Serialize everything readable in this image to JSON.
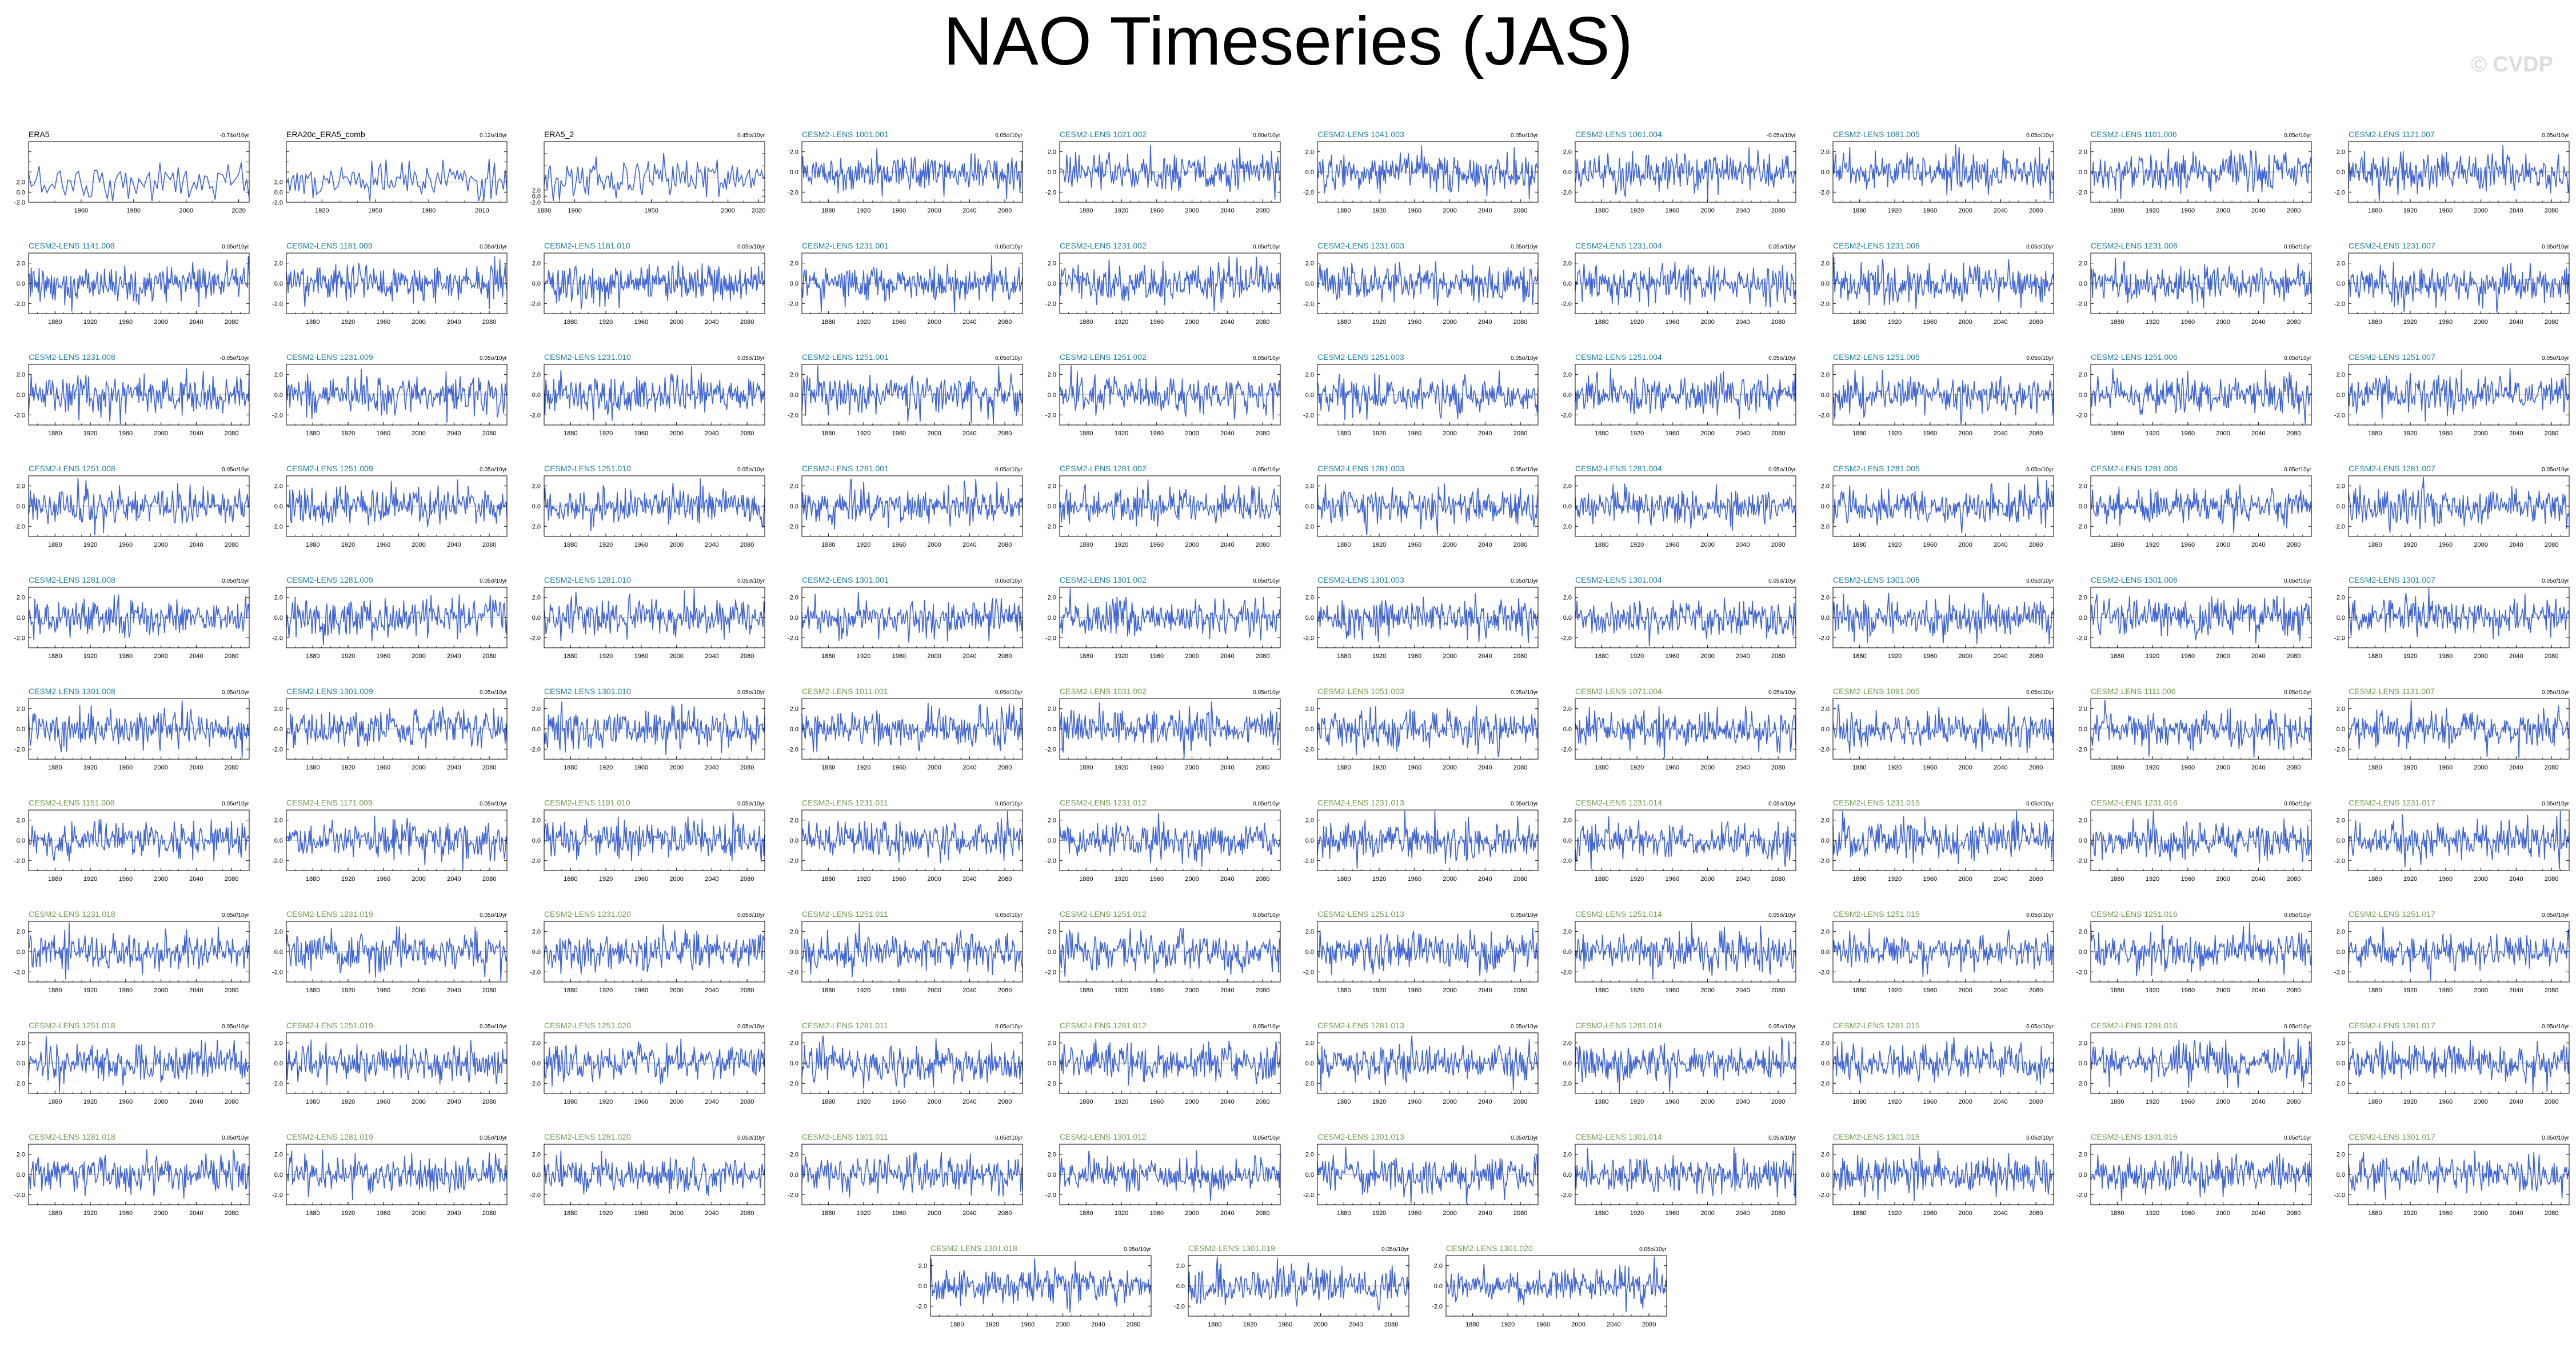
{
  "title": "NAO Timeseries (JAS)",
  "watermark": "© CVDP",
  "colors": {
    "line": "#3e63d6",
    "obs_label": "#000000",
    "model_label_a": "#1b7fa0",
    "model_label_b": "#6e9e4f",
    "axis": "#000000"
  },
  "chart_data": [
    {
      "title": "ERA5",
      "trend": "-0.74σ/10yr",
      "label_color": "obs",
      "xlim": [
        1940,
        2024
      ],
      "xticks": [
        1960,
        1980,
        2000,
        2020
      ],
      "ylim": [
        -2,
        4
      ],
      "yticks": [
        -2,
        -1,
        0,
        1,
        2,
        3,
        4
      ],
      "type": "line"
    },
    {
      "title": "ERA20c_ERA5_comb",
      "trend": "0.12σ/10yr",
      "label_color": "obs",
      "xlim": [
        1900,
        2024
      ],
      "xticks": [
        1920,
        1950,
        1980,
        2010
      ],
      "ylim": [
        -2,
        4
      ],
      "yticks": [
        -2,
        -1,
        0,
        1,
        2,
        3,
        4
      ],
      "type": "line"
    },
    {
      "title": "ERA5_2",
      "trend": "0.45σ/10yr",
      "label_color": "obs",
      "xlim": [
        1880,
        2024
      ],
      "xticks": [
        1880,
        1900,
        1950,
        2000,
        2020
      ],
      "ylim": [
        -2,
        3
      ],
      "yticks": [
        -2,
        -1.5,
        -1,
        0,
        1,
        2,
        3
      ],
      "type": "line"
    },
    {
      "title": "CESM2-LENS 1001.001",
      "trend": "0.05σ/10yr",
      "label_color": "a"
    },
    {
      "title": "CESM2-LENS 1021.002",
      "trend": "0.00σ/10yr",
      "label_color": "a"
    },
    {
      "title": "CESM2-LENS 1041.003",
      "trend": "0.05σ/10yr",
      "label_color": "a"
    },
    {
      "title": "CESM2-LENS 1061.004",
      "trend": "-0.05σ/10yr",
      "label_color": "a"
    },
    {
      "title": "CESM2-LENS 1081.005",
      "trend": "0.05σ/10yr",
      "label_color": "a"
    },
    {
      "title": "CESM2-LENS 1101.006",
      "trend": "0.05σ/10yr",
      "label_color": "a"
    },
    {
      "title": "CESM2-LENS 1121.007",
      "trend": "0.05σ/10yr",
      "label_color": "a"
    },
    {
      "title": "CESM2-LENS 1141.008",
      "trend": "0.05σ/10yr",
      "label_color": "a"
    },
    {
      "title": "CESM2-LENS 1161.009",
      "trend": "0.05σ/10yr",
      "label_color": "a"
    },
    {
      "title": "CESM2-LENS 1181.010",
      "trend": "0.05σ/10yr",
      "label_color": "a"
    },
    {
      "title": "CESM2-LENS 1231.001",
      "trend": "0.05σ/10yr",
      "label_color": "a"
    },
    {
      "title": "CESM2-LENS 1231.002",
      "trend": "0.05σ/10yr",
      "label_color": "a"
    },
    {
      "title": "CESM2-LENS 1231.003",
      "trend": "0.05σ/10yr",
      "label_color": "a"
    },
    {
      "title": "CESM2-LENS 1231.004",
      "trend": "0.05σ/10yr",
      "label_color": "a"
    },
    {
      "title": "CESM2-LENS 1231.005",
      "trend": "0.05σ/10yr",
      "label_color": "a"
    },
    {
      "title": "CESM2-LENS 1231.006",
      "trend": "0.05σ/10yr",
      "label_color": "a"
    },
    {
      "title": "CESM2-LENS 1231.007",
      "trend": "0.05σ/10yr",
      "label_color": "a"
    },
    {
      "title": "CESM2-LENS 1231.008",
      "trend": "-0.05σ/10yr",
      "label_color": "a"
    },
    {
      "title": "CESM2-LENS 1231.009",
      "trend": "0.05σ/10yr",
      "label_color": "a"
    },
    {
      "title": "CESM2-LENS 1231.010",
      "trend": "0.05σ/10yr",
      "label_color": "a"
    },
    {
      "title": "CESM2-LENS 1251.001",
      "trend": "0.05σ/10yr",
      "label_color": "a"
    },
    {
      "title": "CESM2-LENS 1251.002",
      "trend": "0.05σ/10yr",
      "label_color": "a"
    },
    {
      "title": "CESM2-LENS 1251.003",
      "trend": "0.05σ/10yr",
      "label_color": "a"
    },
    {
      "title": "CESM2-LENS 1251.004",
      "trend": "0.05σ/10yr",
      "label_color": "a"
    },
    {
      "title": "CESM2-LENS 1251.005",
      "trend": "0.05σ/10yr",
      "label_color": "a"
    },
    {
      "title": "CESM2-LENS 1251.006",
      "trend": "0.05σ/10yr",
      "label_color": "a"
    },
    {
      "title": "CESM2-LENS 1251.007",
      "trend": "0.05σ/10yr",
      "label_color": "a"
    },
    {
      "title": "CESM2-LENS 1251.008",
      "trend": "0.05σ/10yr",
      "label_color": "a"
    },
    {
      "title": "CESM2-LENS 1251.009",
      "trend": "0.05σ/10yr",
      "label_color": "a"
    },
    {
      "title": "CESM2-LENS 1251.010",
      "trend": "0.05σ/10yr",
      "label_color": "a"
    },
    {
      "title": "CESM2-LENS 1281.001",
      "trend": "0.05σ/10yr",
      "label_color": "a"
    },
    {
      "title": "CESM2-LENS 1281.002",
      "trend": "-0.05σ/10yr",
      "label_color": "a"
    },
    {
      "title": "CESM2-LENS 1281.003",
      "trend": "0.05σ/10yr",
      "label_color": "a"
    },
    {
      "title": "CESM2-LENS 1281.004",
      "trend": "0.05σ/10yr",
      "label_color": "a"
    },
    {
      "title": "CESM2-LENS 1281.005",
      "trend": "0.05σ/10yr",
      "label_color": "a"
    },
    {
      "title": "CESM2-LENS 1281.006",
      "trend": "0.05σ/10yr",
      "label_color": "a"
    },
    {
      "title": "CESM2-LENS 1281.007",
      "trend": "0.05σ/10yr",
      "label_color": "a"
    },
    {
      "title": "CESM2-LENS 1281.008",
      "trend": "0.05σ/10yr",
      "label_color": "a"
    },
    {
      "title": "CESM2-LENS 1281.009",
      "trend": "0.05σ/10yr",
      "label_color": "a"
    },
    {
      "title": "CESM2-LENS 1281.010",
      "trend": "0.05σ/10yr",
      "label_color": "a"
    },
    {
      "title": "CESM2-LENS 1301.001",
      "trend": "0.05σ/10yr",
      "label_color": "a"
    },
    {
      "title": "CESM2-LENS 1301.002",
      "trend": "0.05σ/10yr",
      "label_color": "a"
    },
    {
      "title": "CESM2-LENS 1301.003",
      "trend": "0.05σ/10yr",
      "label_color": "a"
    },
    {
      "title": "CESM2-LENS 1301.004",
      "trend": "0.05σ/10yr",
      "label_color": "a"
    },
    {
      "title": "CESM2-LENS 1301.005",
      "trend": "0.05σ/10yr",
      "label_color": "a"
    },
    {
      "title": "CESM2-LENS 1301.006",
      "trend": "0.05σ/10yr",
      "label_color": "a"
    },
    {
      "title": "CESM2-LENS 1301.007",
      "trend": "0.05σ/10yr",
      "label_color": "a"
    },
    {
      "title": "CESM2-LENS 1301.008",
      "trend": "0.05σ/10yr",
      "label_color": "a"
    },
    {
      "title": "CESM2-LENS 1301.009",
      "trend": "0.05σ/10yr",
      "label_color": "a"
    },
    {
      "title": "CESM2-LENS 1301.010",
      "trend": "0.05σ/10yr",
      "label_color": "a"
    },
    {
      "title": "CESM2-LENS 1011.001",
      "trend": "0.05σ/10yr",
      "label_color": "b"
    },
    {
      "title": "CESM2-LENS 1031.002",
      "trend": "0.05σ/10yr",
      "label_color": "b"
    },
    {
      "title": "CESM2-LENS 1051.003",
      "trend": "0.05σ/10yr",
      "label_color": "b"
    },
    {
      "title": "CESM2-LENS 1071.004",
      "trend": "0.05σ/10yr",
      "label_color": "b"
    },
    {
      "title": "CESM2-LENS 1091.005",
      "trend": "0.05σ/10yr",
      "label_color": "b"
    },
    {
      "title": "CESM2-LENS 1111.006",
      "trend": "0.05σ/10yr",
      "label_color": "b"
    },
    {
      "title": "CESM2-LENS 1131.007",
      "trend": "0.05σ/10yr",
      "label_color": "b"
    },
    {
      "title": "CESM2-LENS 1151.008",
      "trend": "0.05σ/10yr",
      "label_color": "b"
    },
    {
      "title": "CESM2-LENS 1171.009",
      "trend": "0.05σ/10yr",
      "label_color": "b"
    },
    {
      "title": "CESM2-LENS 1191.010",
      "trend": "0.05σ/10yr",
      "label_color": "b"
    },
    {
      "title": "CESM2-LENS 1231.011",
      "trend": "0.05σ/10yr",
      "label_color": "b"
    },
    {
      "title": "CESM2-LENS 1231.012",
      "trend": "0.05σ/10yr",
      "label_color": "b"
    },
    {
      "title": "CESM2-LENS 1231.013",
      "trend": "0.05σ/10yr",
      "label_color": "b"
    },
    {
      "title": "CESM2-LENS 1231.014",
      "trend": "0.05σ/10yr",
      "label_color": "b"
    },
    {
      "title": "CESM2-LENS 1231.015",
      "trend": "0.05σ/10yr",
      "label_color": "b"
    },
    {
      "title": "CESM2-LENS 1231.016",
      "trend": "0.05σ/10yr",
      "label_color": "b"
    },
    {
      "title": "CESM2-LENS 1231.017",
      "trend": "0.05σ/10yr",
      "label_color": "b"
    },
    {
      "title": "CESM2-LENS 1231.018",
      "trend": "0.05σ/10yr",
      "label_color": "b"
    },
    {
      "title": "CESM2-LENS 1231.019",
      "trend": "0.05σ/10yr",
      "label_color": "b"
    },
    {
      "title": "CESM2-LENS 1231.020",
      "trend": "0.05σ/10yr",
      "label_color": "b"
    },
    {
      "title": "CESM2-LENS 1251.011",
      "trend": "0.05σ/10yr",
      "label_color": "b"
    },
    {
      "title": "CESM2-LENS 1251.012",
      "trend": "0.05σ/10yr",
      "label_color": "b"
    },
    {
      "title": "CESM2-LENS 1251.013",
      "trend": "0.05σ/10yr",
      "label_color": "b"
    },
    {
      "title": "CESM2-LENS 1251.014",
      "trend": "0.05σ/10yr",
      "label_color": "b"
    },
    {
      "title": "CESM2-LENS 1251.015",
      "trend": "0.05σ/10yr",
      "label_color": "b"
    },
    {
      "title": "CESM2-LENS 1251.016",
      "trend": "0.05σ/10yr",
      "label_color": "b"
    },
    {
      "title": "CESM2-LENS 1251.017",
      "trend": "0.05σ/10yr",
      "label_color": "b"
    },
    {
      "title": "CESM2-LENS 1251.018",
      "trend": "0.05σ/10yr",
      "label_color": "b"
    },
    {
      "title": "CESM2-LENS 1251.019",
      "trend": "0.05σ/10yr",
      "label_color": "b"
    },
    {
      "title": "CESM2-LENS 1251.020",
      "trend": "0.05σ/10yr",
      "label_color": "b"
    },
    {
      "title": "CESM2-LENS 1281.011",
      "trend": "0.05σ/10yr",
      "label_color": "b"
    },
    {
      "title": "CESM2-LENS 1281.012",
      "trend": "0.05σ/10yr",
      "label_color": "b"
    },
    {
      "title": "CESM2-LENS 1281.013",
      "trend": "0.05σ/10yr",
      "label_color": "b"
    },
    {
      "title": "CESM2-LENS 1281.014",
      "trend": "0.05σ/10yr",
      "label_color": "b"
    },
    {
      "title": "CESM2-LENS 1281.015",
      "trend": "0.05σ/10yr",
      "label_color": "b"
    },
    {
      "title": "CESM2-LENS 1281.016",
      "trend": "0.05σ/10yr",
      "label_color": "b"
    },
    {
      "title": "CESM2-LENS 1281.017",
      "trend": "0.05σ/10yr",
      "label_color": "b"
    },
    {
      "title": "CESM2-LENS 1281.018",
      "trend": "0.05σ/10yr",
      "label_color": "b"
    },
    {
      "title": "CESM2-LENS 1281.019",
      "trend": "0.05σ/10yr",
      "label_color": "b"
    },
    {
      "title": "CESM2-LENS 1281.020",
      "trend": "0.05σ/10yr",
      "label_color": "b"
    },
    {
      "title": "CESM2-LENS 1301.011",
      "trend": "0.05σ/10yr",
      "label_color": "b"
    },
    {
      "title": "CESM2-LENS 1301.012",
      "trend": "0.05σ/10yr",
      "label_color": "b"
    },
    {
      "title": "CESM2-LENS 1301.013",
      "trend": "0.05σ/10yr",
      "label_color": "b"
    },
    {
      "title": "CESM2-LENS 1301.014",
      "trend": "0.05σ/10yr",
      "label_color": "b"
    },
    {
      "title": "CESM2-LENS 1301.015",
      "trend": "0.05σ/10yr",
      "label_color": "b"
    },
    {
      "title": "CESM2-LENS 1301.016",
      "trend": "0.05σ/10yr",
      "label_color": "b"
    },
    {
      "title": "CESM2-LENS 1301.017",
      "trend": "0.05σ/10yr",
      "label_color": "b"
    },
    {
      "title": "CESM2-LENS 1301.018",
      "trend": "0.05σ/10yr",
      "label_color": "b"
    },
    {
      "title": "CESM2-LENS 1301.019",
      "trend": "0.05σ/10yr",
      "label_color": "b"
    },
    {
      "title": "CESM2-LENS 1301.020",
      "trend": "0.05σ/10yr",
      "label_color": "b"
    }
  ],
  "model_defaults": {
    "type": "line",
    "xlim": [
      1850,
      2100
    ],
    "xticks": [
      1880,
      1920,
      1960,
      2000,
      2040,
      2080
    ],
    "ylim": [
      -3,
      3
    ],
    "yticks": [
      -2,
      0,
      2
    ],
    "ytick_labels": [
      "-2.0",
      "0.0",
      "2.0"
    ]
  }
}
